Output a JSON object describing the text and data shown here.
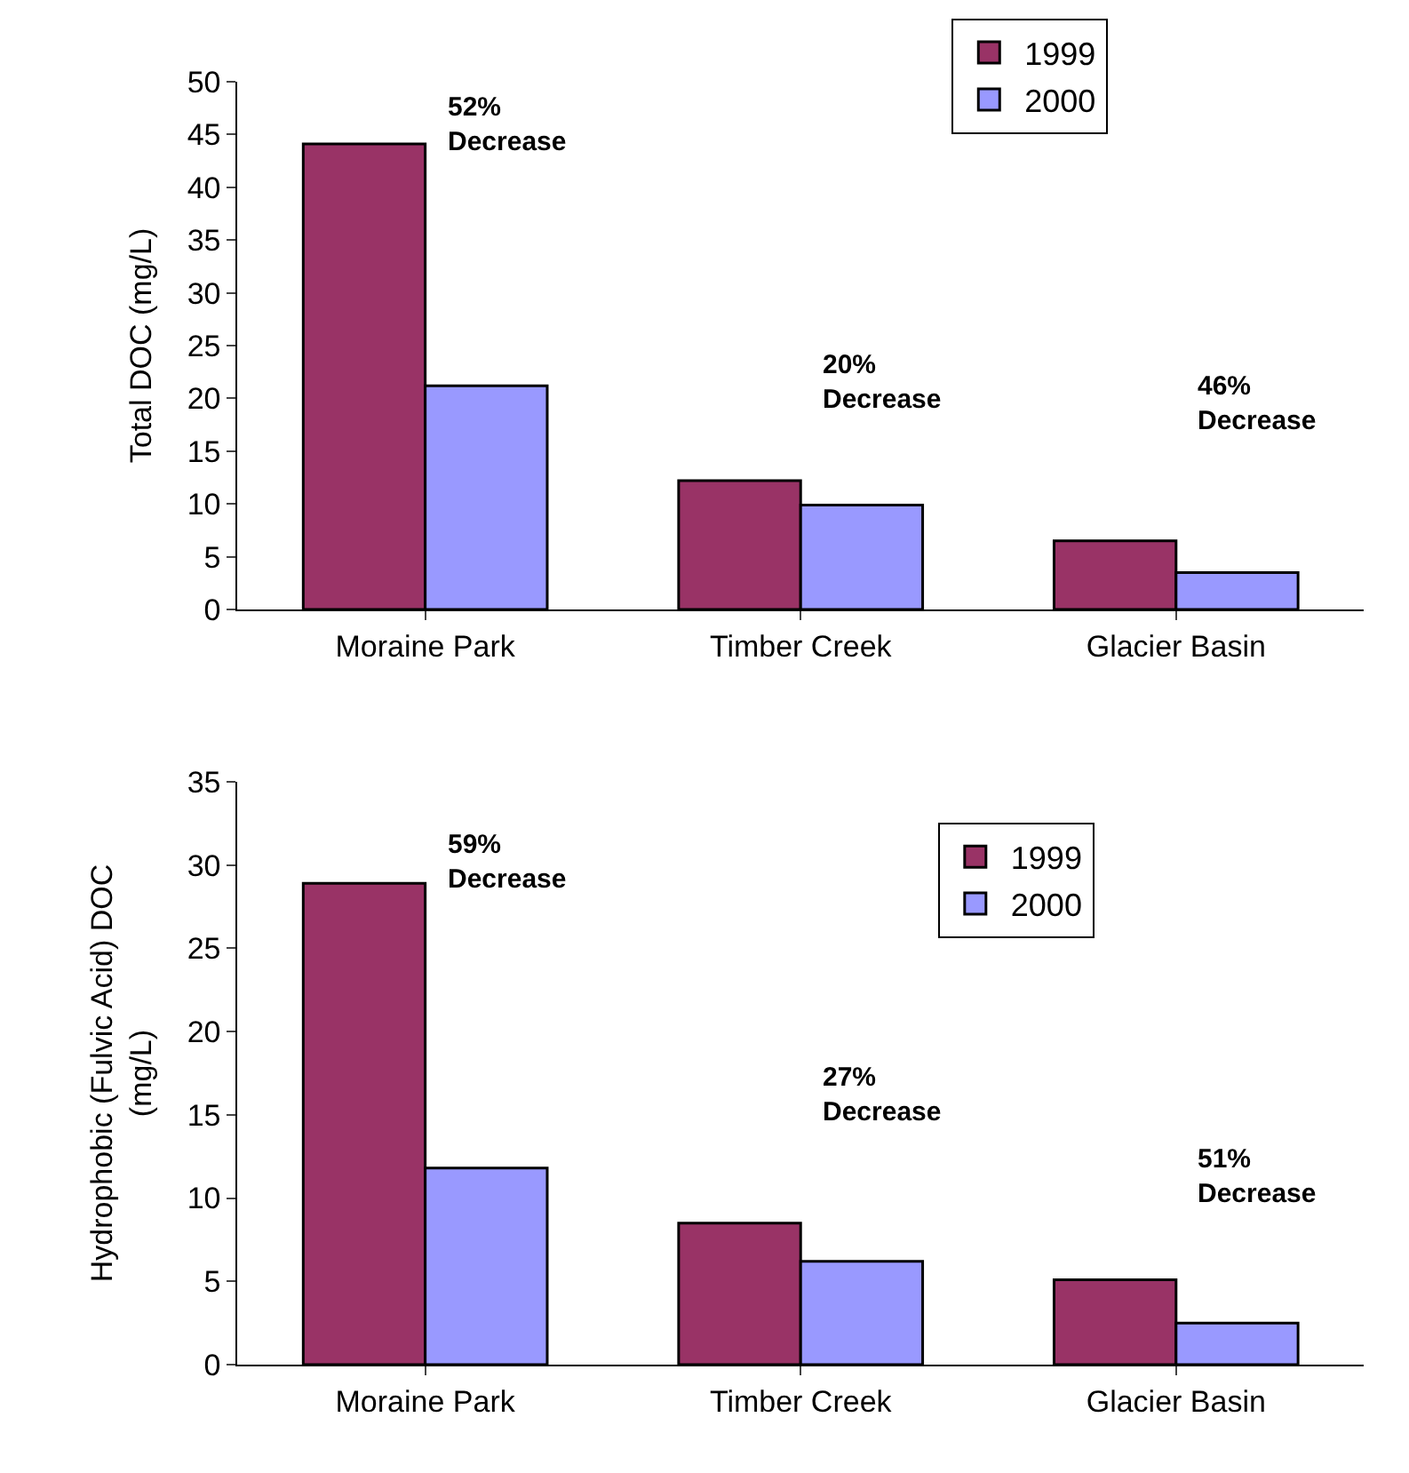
{
  "chart_data": [
    {
      "type": "bar",
      "ylabel": "Total DOC (mg/L)",
      "categories": [
        "Moraine Park",
        "Timber Creek",
        "Glacier Basin"
      ],
      "series": [
        {
          "name": "1999",
          "color": "#993366",
          "values": [
            44.1,
            12.2,
            6.5
          ]
        },
        {
          "name": "2000",
          "color": "#9999ff",
          "values": [
            21.2,
            9.9,
            3.5
          ]
        }
      ],
      "ylim": [
        0,
        50
      ],
      "yticks": [
        0,
        5,
        10,
        15,
        20,
        25,
        30,
        35,
        40,
        45,
        50
      ],
      "legend": "top right",
      "annotations": [
        "52%\nDecrease",
        "20%\nDecrease",
        "46%\nDecrease"
      ]
    },
    {
      "type": "bar",
      "ylabel": "Hydrophobic (Fulvic Acid) DOC\n(mg/L)",
      "categories": [
        "Moraine Park",
        "Timber Creek",
        "Glacier Basin"
      ],
      "series": [
        {
          "name": "1999",
          "color": "#993366",
          "values": [
            28.9,
            8.5,
            5.1
          ]
        },
        {
          "name": "2000",
          "color": "#9999ff",
          "values": [
            11.8,
            6.2,
            2.5
          ]
        }
      ],
      "ylim": [
        0,
        35
      ],
      "yticks": [
        0,
        5,
        10,
        15,
        20,
        25,
        30,
        35
      ],
      "legend": "top right",
      "annotations": [
        "59%\nDecrease",
        "27%\nDecrease",
        "51%\nDecrease"
      ]
    }
  ]
}
